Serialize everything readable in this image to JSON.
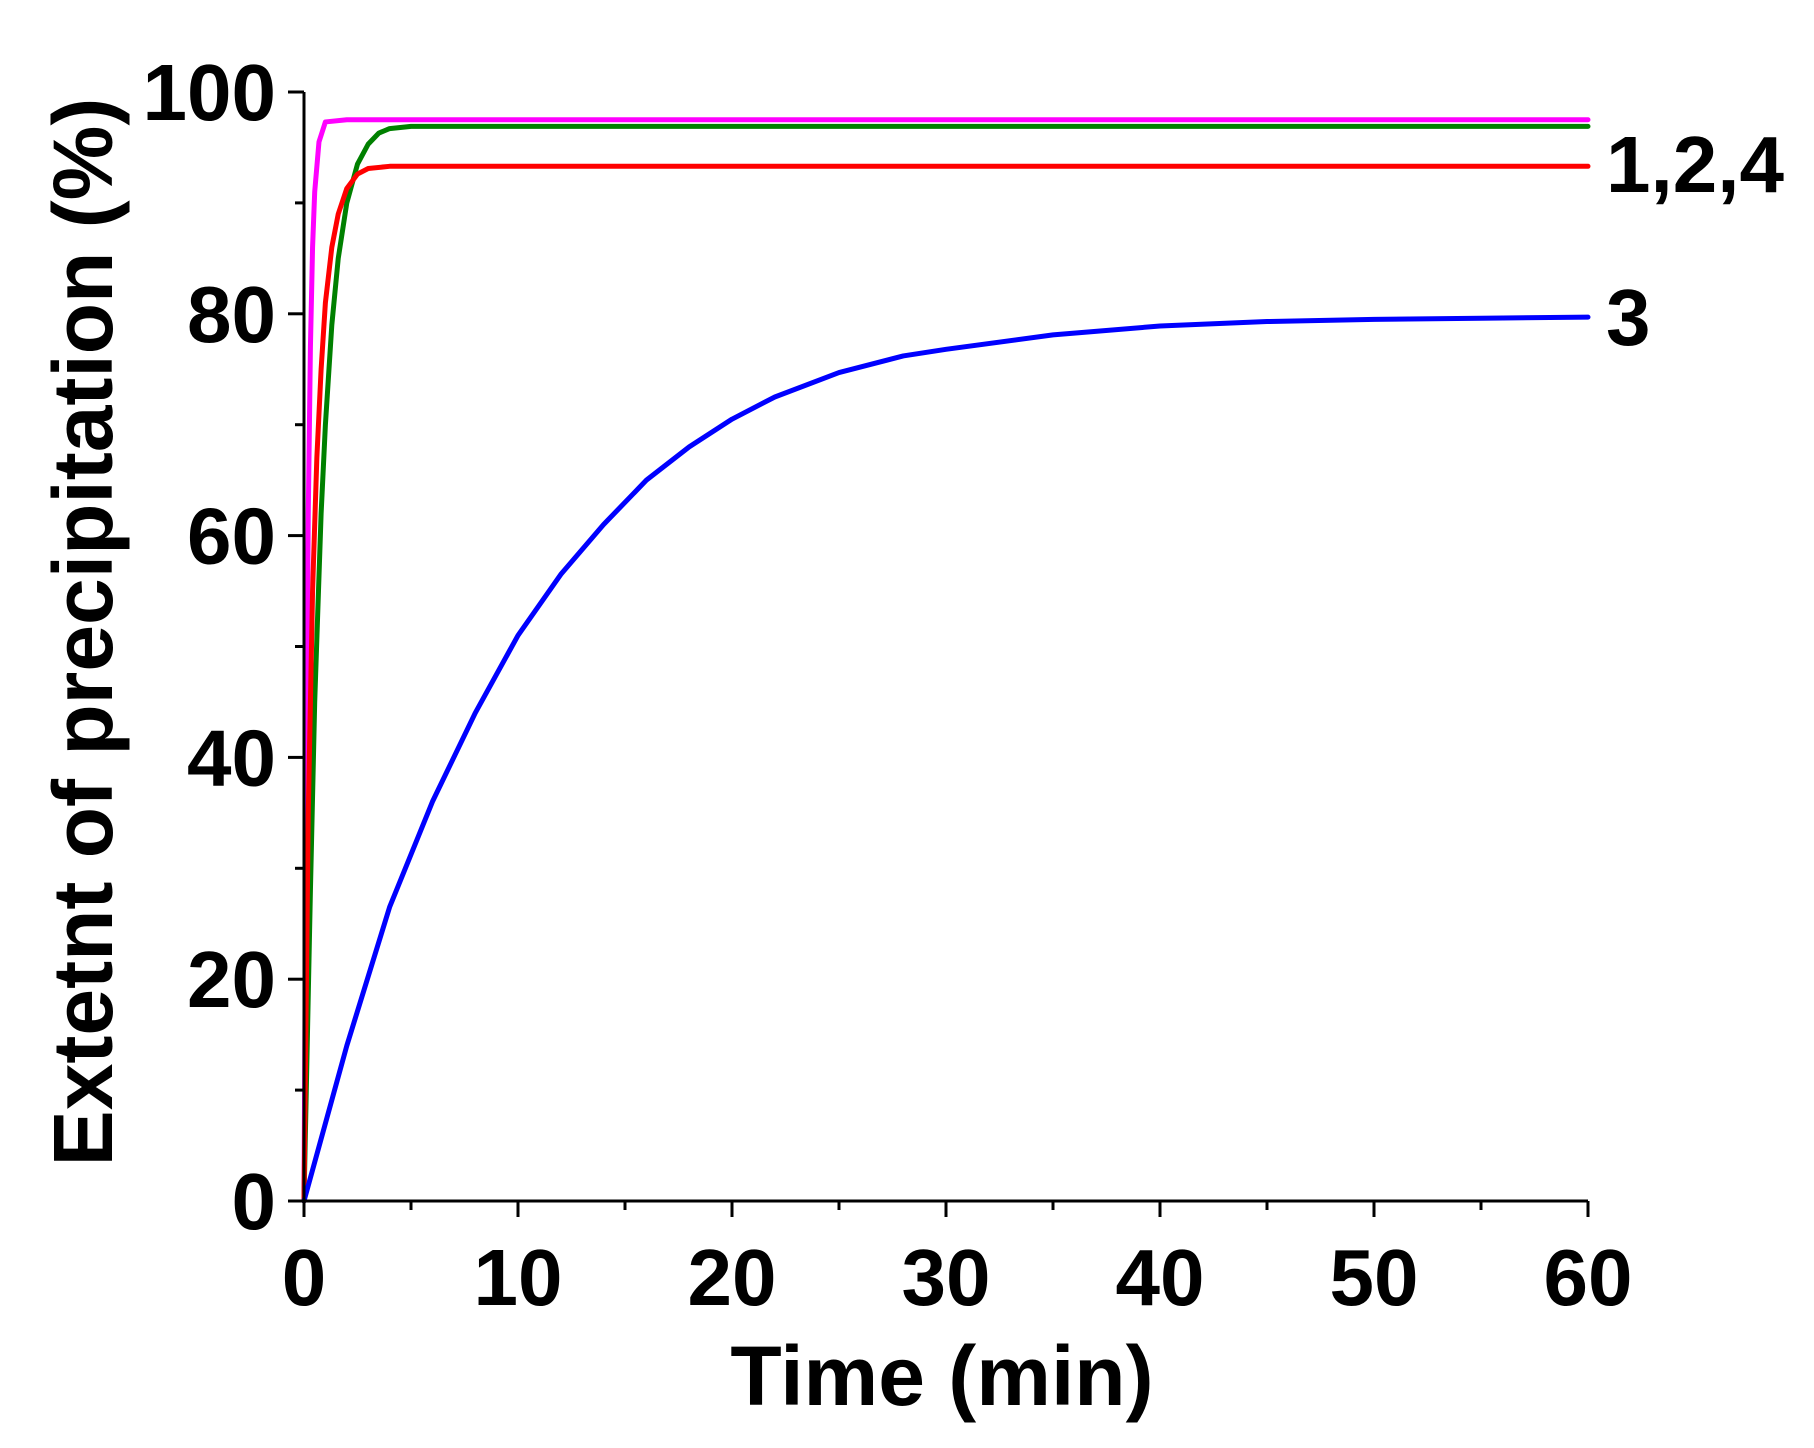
{
  "chart_data": {
    "type": "line",
    "xlabel": "Time (min)",
    "ylabel": "Extetnt of precipitation (%)",
    "xlim": [
      0,
      60
    ],
    "ylim": [
      0,
      100
    ],
    "x_ticks": [
      0,
      10,
      20,
      30,
      40,
      50,
      60
    ],
    "y_ticks": [
      0,
      20,
      40,
      60,
      80,
      100
    ],
    "grid": false,
    "legend": "none",
    "series": [
      {
        "color": "#ff00ff",
        "x": [
          0,
          0.1,
          0.2,
          0.3,
          0.4,
          0.5,
          0.7,
          1,
          2,
          5,
          10,
          20,
          30,
          40,
          50,
          60
        ],
        "y": [
          0,
          37,
          62,
          77,
          86,
          91,
          95.5,
          97.3,
          97.5,
          97.5,
          97.5,
          97.5,
          97.5,
          97.5,
          97.5,
          97.5
        ]
      },
      {
        "color": "#008000",
        "x": [
          0,
          0.3,
          0.5,
          0.8,
          1,
          1.3,
          1.6,
          2,
          2.5,
          3,
          3.5,
          4,
          5,
          10,
          20,
          30,
          40,
          50,
          60
        ],
        "y": [
          0,
          28,
          45,
          62,
          70,
          79,
          85,
          90,
          93.5,
          95.3,
          96.3,
          96.7,
          96.9,
          96.9,
          96.9,
          96.9,
          96.9,
          96.9,
          96.9
        ]
      },
      {
        "color": "#ff0000",
        "x": [
          0,
          0.2,
          0.4,
          0.6,
          0.8,
          1,
          1.3,
          1.6,
          2,
          2.5,
          3,
          4,
          6,
          10,
          20,
          30,
          40,
          50,
          60
        ],
        "y": [
          0,
          35,
          55,
          67,
          75,
          81,
          86,
          89,
          91.3,
          92.6,
          93.1,
          93.3,
          93.3,
          93.3,
          93.3,
          93.3,
          93.3,
          93.3,
          93.3
        ]
      },
      {
        "color": "#0000ff",
        "x": [
          0,
          2,
          4,
          6,
          8,
          10,
          12,
          14,
          16,
          18,
          20,
          22,
          25,
          28,
          30,
          35,
          40,
          45,
          50,
          55,
          60
        ],
        "y": [
          0,
          14,
          26.5,
          36,
          44,
          51,
          56.5,
          61,
          65,
          68,
          70.5,
          72.5,
          74.7,
          76.2,
          76.8,
          78.1,
          78.9,
          79.3,
          79.5,
          79.6,
          79.7
        ]
      }
    ],
    "annotations": [
      {
        "text": "1,2,4",
        "x": 60,
        "y": 93.5
      },
      {
        "text": "3",
        "x": 60,
        "y": 79.7
      }
    ]
  }
}
